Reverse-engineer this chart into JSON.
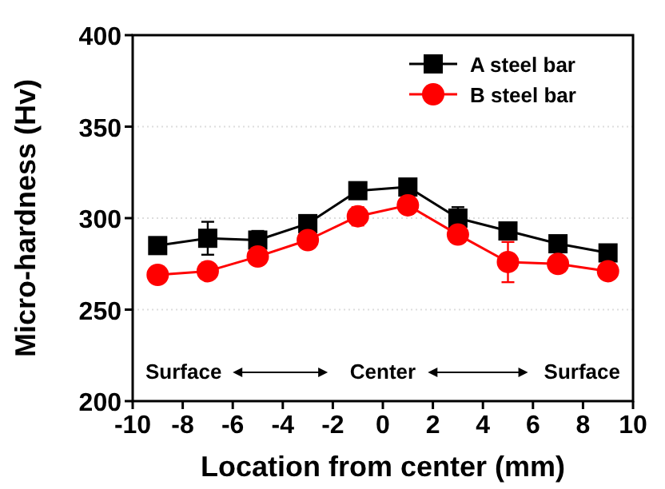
{
  "chart_data": {
    "type": "line",
    "xlabel": "Location from center (mm)",
    "ylabel": "Micro-hardness (Hv)",
    "x": [
      -9,
      -7,
      -5,
      -3,
      -1,
      1,
      3,
      5,
      7,
      9
    ],
    "series": [
      {
        "name": "A steel bar",
        "color": "#000000",
        "marker": "square",
        "values": [
          285,
          289,
          288,
          297,
          315,
          317,
          300,
          293,
          286,
          281
        ],
        "errors": [
          2,
          9,
          5,
          3,
          3,
          3,
          6,
          3,
          4,
          3
        ]
      },
      {
        "name": "B steel bar",
        "color": "#ff0000",
        "marker": "circle",
        "values": [
          269,
          271,
          279,
          288,
          301,
          307,
          291,
          276,
          275,
          271
        ],
        "errors": [
          2,
          2,
          3,
          3,
          5,
          3,
          3,
          11,
          3,
          2
        ]
      }
    ],
    "xlim": [
      -10,
      10
    ],
    "xticks": [
      -10,
      -8,
      -6,
      -4,
      -2,
      0,
      2,
      4,
      6,
      8,
      10
    ],
    "ylim": [
      200,
      400
    ],
    "yticks": [
      200,
      250,
      300,
      350,
      400
    ],
    "grid": "y",
    "legend": "top right",
    "line_style": "solid",
    "annotations": [
      "Surface",
      "Center",
      "Surface"
    ]
  }
}
